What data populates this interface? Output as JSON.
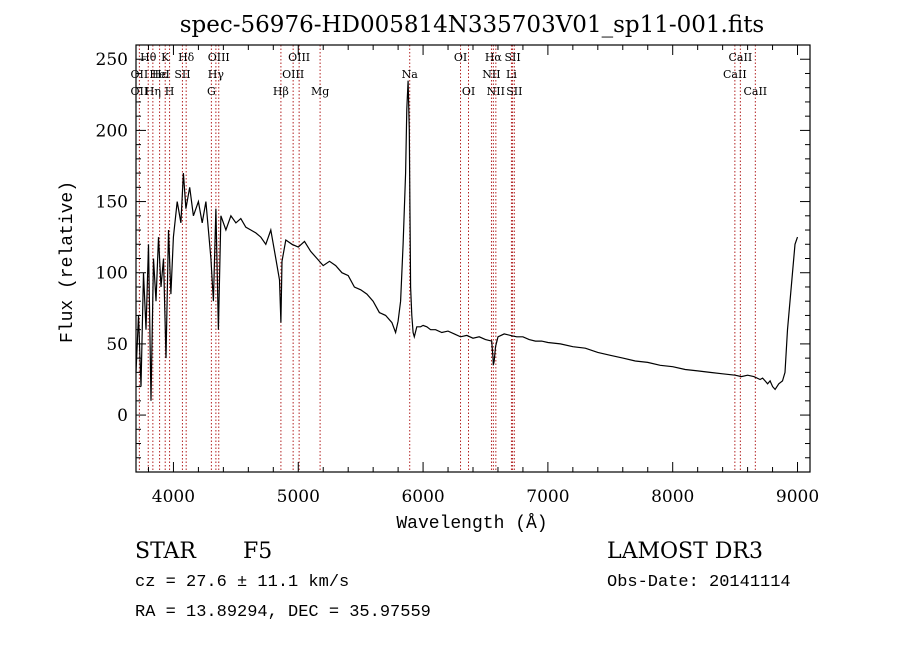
{
  "chart_data": {
    "type": "line",
    "title": "spec-56976-HD005814N335703V01_sp11-001.fits",
    "xlabel": "Wavelength (Å)",
    "ylabel": "Flux (relative)",
    "xlim": [
      3700,
      9100
    ],
    "ylim": [
      -40,
      260
    ],
    "xticks": [
      4000,
      5000,
      6000,
      7000,
      8000,
      9000
    ],
    "yticks": [
      0,
      50,
      100,
      150,
      200,
      250
    ],
    "series": [
      {
        "name": "flux",
        "x": [
          3700,
          3720,
          3740,
          3760,
          3780,
          3800,
          3820,
          3840,
          3860,
          3880,
          3900,
          3920,
          3940,
          3960,
          3980,
          4000,
          4030,
          4060,
          4080,
          4100,
          4130,
          4160,
          4200,
          4230,
          4260,
          4300,
          4320,
          4340,
          4360,
          4380,
          4420,
          4460,
          4500,
          4540,
          4580,
          4620,
          4660,
          4700,
          4740,
          4780,
          4820,
          4850,
          4861,
          4870,
          4900,
          4950,
          5000,
          5050,
          5100,
          5150,
          5200,
          5250,
          5300,
          5350,
          5400,
          5450,
          5500,
          5550,
          5600,
          5650,
          5700,
          5750,
          5780,
          5800,
          5820,
          5840,
          5860,
          5870,
          5880,
          5890,
          5895,
          5900,
          5910,
          5920,
          5930,
          5950,
          5980,
          6000,
          6030,
          6060,
          6100,
          6150,
          6200,
          6250,
          6300,
          6350,
          6400,
          6450,
          6500,
          6550,
          6560,
          6563,
          6570,
          6580,
          6600,
          6650,
          6700,
          6750,
          6800,
          6850,
          6900,
          6950,
          7000,
          7100,
          7200,
          7300,
          7400,
          7500,
          7600,
          7700,
          7800,
          7900,
          8000,
          8100,
          8200,
          8300,
          8400,
          8500,
          8550,
          8600,
          8650,
          8700,
          8720,
          8740,
          8760,
          8780,
          8800,
          8820,
          8850,
          8880,
          8900,
          8920,
          8940,
          8960,
          8980,
          9000
        ],
        "y": [
          30,
          70,
          20,
          100,
          60,
          120,
          10,
          110,
          80,
          125,
          90,
          110,
          40,
          130,
          85,
          125,
          150,
          135,
          170,
          145,
          160,
          140,
          150,
          135,
          150,
          110,
          80,
          145,
          60,
          140,
          130,
          140,
          135,
          138,
          132,
          130,
          128,
          125,
          120,
          130,
          110,
          95,
          65,
          108,
          123,
          120,
          118,
          122,
          115,
          110,
          105,
          108,
          105,
          100,
          98,
          90,
          88,
          85,
          80,
          72,
          70,
          65,
          58,
          66,
          80,
          120,
          170,
          215,
          235,
          200,
          140,
          90,
          70,
          58,
          55,
          62,
          62,
          63,
          62,
          60,
          60,
          58,
          59,
          57,
          55,
          56,
          54,
          55,
          53,
          52,
          40,
          35,
          38,
          48,
          55,
          57,
          56,
          55,
          55,
          53,
          52,
          52,
          51,
          50,
          48,
          47,
          44,
          42,
          40,
          38,
          37,
          35,
          34,
          32,
          31,
          30,
          29,
          28,
          27,
          28,
          27,
          25,
          26,
          24,
          22,
          24,
          20,
          18,
          22,
          24,
          30,
          60,
          80,
          100,
          120,
          125
        ]
      }
    ],
    "line_markers": [
      {
        "label": "Hθ",
        "wave": 3798,
        "row": 1
      },
      {
        "label": "OII",
        "wave": 3727,
        "row": 2
      },
      {
        "label": "OII",
        "wave": 3727,
        "row": 3
      },
      {
        "label": "Hε",
        "wave": 3889,
        "row": 2
      },
      {
        "label": "Hη",
        "wave": 3835,
        "row": 3
      },
      {
        "label": "K",
        "wave": 3934,
        "row": 1
      },
      {
        "label": "H",
        "wave": 3969,
        "row": 3
      },
      {
        "label": "HeI",
        "wave": 3889,
        "row": 2
      },
      {
        "label": "SII",
        "wave": 4072,
        "row": 2
      },
      {
        "label": "Hδ",
        "wave": 4102,
        "row": 1
      },
      {
        "label": "OIII",
        "wave": 4363,
        "row": 1
      },
      {
        "label": "Hγ",
        "wave": 4340,
        "row": 2
      },
      {
        "label": "G",
        "wave": 4304,
        "row": 3
      },
      {
        "label": "Hβ",
        "wave": 4861,
        "row": 3
      },
      {
        "label": "OIII",
        "wave": 5007,
        "row": 1
      },
      {
        "label": "OIII",
        "wave": 4959,
        "row": 2
      },
      {
        "label": "Mg",
        "wave": 5175,
        "row": 3
      },
      {
        "label": "Na",
        "wave": 5893,
        "row": 2
      },
      {
        "label": "OI",
        "wave": 6300,
        "row": 1
      },
      {
        "label": "OI",
        "wave": 6364,
        "row": 3
      },
      {
        "label": "Hα",
        "wave": 6563,
        "row": 1
      },
      {
        "label": "NII",
        "wave": 6548,
        "row": 2
      },
      {
        "label": "NII",
        "wave": 6583,
        "row": 3
      },
      {
        "label": "SII",
        "wave": 6717,
        "row": 1
      },
      {
        "label": "Li",
        "wave": 6708,
        "row": 2
      },
      {
        "label": "SII",
        "wave": 6731,
        "row": 3
      },
      {
        "label": "CaII",
        "wave": 8542,
        "row": 1
      },
      {
        "label": "CaII",
        "wave": 8498,
        "row": 2
      },
      {
        "label": "CaII",
        "wave": 8662,
        "row": 3
      }
    ],
    "marker_waves": [
      3727,
      3798,
      3835,
      3889,
      3934,
      3969,
      4072,
      4102,
      4304,
      4340,
      4363,
      4861,
      4959,
      5007,
      5175,
      5893,
      6300,
      6364,
      6548,
      6563,
      6583,
      6708,
      6717,
      6731,
      8498,
      8542,
      8662
    ],
    "colors": {
      "marker": "#b22222",
      "flux": "#000000"
    }
  },
  "info": {
    "object_type": "STAR",
    "subclass": "F5",
    "survey": "LAMOST DR3",
    "cz": "cz = 27.6 ± 11.1 km/s",
    "obs_date": "Obs-Date: 20141114",
    "coords": "RA =  13.89294, DEC =  35.97559"
  }
}
